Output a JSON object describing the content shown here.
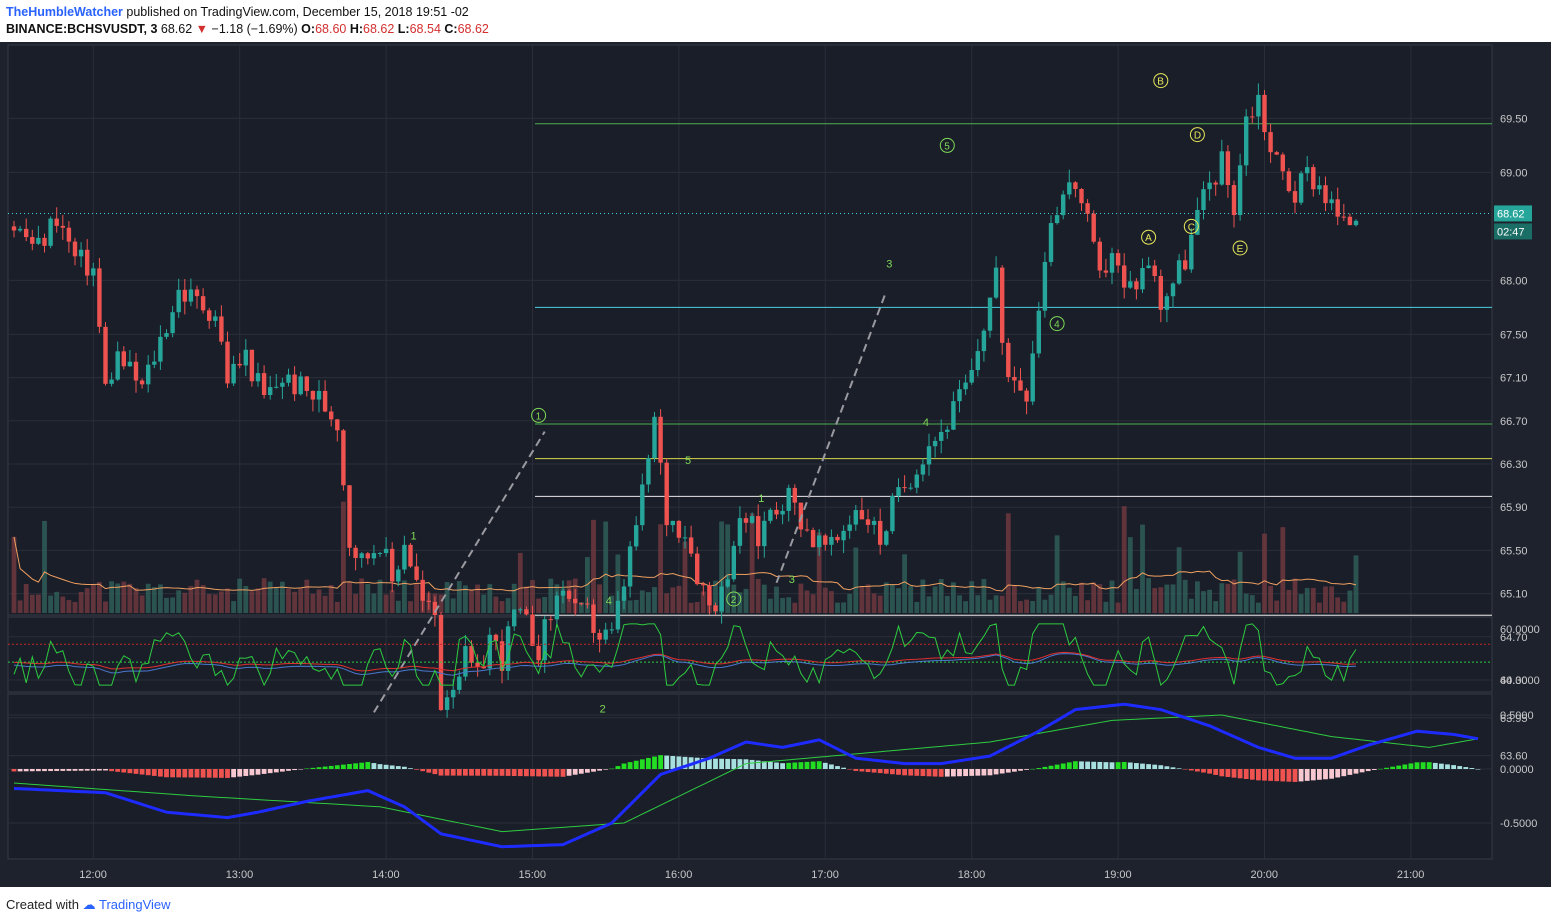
{
  "header": {
    "author": "TheHumbleWatcher",
    "published": "published on TradingView.com, December 15, 2018 19:51 -02",
    "symbol": "BINANCE:BCHSVUSDT, 3",
    "last": "68.62",
    "change": "−1.18 (−1.69%)",
    "o_label": "O:",
    "o_value": "68.60",
    "h_label": "H:",
    "h_value": "68.62",
    "l_label": "L:",
    "l_value": "68.54",
    "c_label": "C:",
    "c_value": "68.62"
  },
  "footer": {
    "created": "Created with",
    "brand": "TradingView"
  },
  "colors": {
    "bg": "#1e222d",
    "up": "#26a69a",
    "down": "#ef5350",
    "grid": "#2a2e39",
    "macd_line": "#1e2bff",
    "signal": "#2ecc40",
    "yellow": "#e8e85a",
    "cyan": "#4dd0e1"
  },
  "chart_data": [
    {
      "type": "candlestick",
      "title": "BINANCE:BCHSVUSDT, 3",
      "x_ticks": [
        "12:00",
        "13:00",
        "14:00",
        "15:00",
        "16:00",
        "17:00",
        "18:00",
        "19:00",
        "20:00",
        "21:00"
      ],
      "y_ticks": [
        "69.50",
        "69.00",
        "68.00",
        "67.50",
        "67.10",
        "66.70",
        "66.30",
        "65.90",
        "65.50",
        "65.10",
        "64.70",
        "64.30",
        "63.95",
        "63.60"
      ],
      "last_price_label": "68.62",
      "countdown_label": "02:47",
      "ohlc_path": [
        [
          0,
          68.5
        ],
        [
          4,
          68.3
        ],
        [
          7,
          68.6
        ],
        [
          10,
          68.2
        ],
        [
          13,
          68.1
        ],
        [
          15,
          67.0
        ],
        [
          17,
          67.3
        ],
        [
          21,
          67.0
        ],
        [
          25,
          67.6
        ],
        [
          27,
          67.9
        ],
        [
          30,
          67.8
        ],
        [
          33,
          67.7
        ],
        [
          35,
          67.1
        ],
        [
          38,
          67.3
        ],
        [
          41,
          66.9
        ],
        [
          44,
          67.1
        ],
        [
          47,
          67.0
        ],
        [
          50,
          66.9
        ],
        [
          53,
          66.7
        ],
        [
          55,
          65.6
        ],
        [
          57,
          65.4
        ],
        [
          60,
          65.6
        ],
        [
          62,
          65.2
        ],
        [
          64,
          65.6
        ],
        [
          67,
          65.0
        ],
        [
          69,
          64.9
        ],
        [
          70,
          64.1
        ],
        [
          72,
          64.3
        ],
        [
          74,
          64.5
        ],
        [
          76,
          64.3
        ],
        [
          78,
          64.7
        ],
        [
          80,
          64.5
        ],
        [
          82,
          64.9
        ],
        [
          84,
          64.8
        ],
        [
          86,
          64.6
        ],
        [
          88,
          64.9
        ],
        [
          90,
          65.2
        ],
        [
          92,
          64.9
        ],
        [
          94,
          64.9
        ],
        [
          96,
          64.7
        ],
        [
          98,
          64.7
        ],
        [
          100,
          65.2
        ],
        [
          103,
          66.0
        ],
        [
          105,
          66.7
        ],
        [
          107,
          65.8
        ],
        [
          110,
          65.7
        ],
        [
          112,
          65.3
        ],
        [
          114,
          65.0
        ],
        [
          116,
          65.1
        ],
        [
          118,
          65.6
        ],
        [
          120,
          65.8
        ],
        [
          122,
          65.6
        ],
        [
          124,
          65.9
        ],
        [
          127,
          66.0
        ],
        [
          129,
          65.8
        ],
        [
          131,
          65.6
        ],
        [
          134,
          65.5
        ],
        [
          136,
          65.7
        ],
        [
          138,
          65.9
        ],
        [
          140,
          65.8
        ],
        [
          142,
          65.6
        ],
        [
          144,
          65.9
        ],
        [
          146,
          66.1
        ],
        [
          148,
          66.3
        ],
        [
          150,
          66.5
        ],
        [
          152,
          66.6
        ],
        [
          154,
          66.8
        ],
        [
          157,
          67.1
        ],
        [
          159,
          67.6
        ],
        [
          161,
          68.1
        ],
        [
          162,
          67.3
        ],
        [
          164,
          67.1
        ],
        [
          166,
          67.0
        ],
        [
          168,
          67.8
        ],
        [
          170,
          68.6
        ],
        [
          172,
          68.8
        ],
        [
          174,
          68.9
        ],
        [
          176,
          68.5
        ],
        [
          178,
          68.0
        ],
        [
          180,
          68.3
        ],
        [
          182,
          67.9
        ],
        [
          184,
          68.0
        ],
        [
          186,
          68.2
        ],
        [
          188,
          67.8
        ],
        [
          190,
          68.0
        ],
        [
          192,
          68.2
        ],
        [
          194,
          68.6
        ],
        [
          196,
          68.9
        ],
        [
          198,
          69.1
        ],
        [
          200,
          68.7
        ],
        [
          202,
          69.5
        ],
        [
          204,
          69.7
        ],
        [
          206,
          69.2
        ],
        [
          208,
          69.0
        ],
        [
          210,
          68.8
        ],
        [
          212,
          69.0
        ],
        [
          214,
          68.9
        ],
        [
          216,
          68.7
        ],
        [
          218,
          68.5
        ],
        [
          220,
          68.62
        ]
      ]
    },
    {
      "type": "line",
      "title": "RSI",
      "y_ticks": [
        "60.0000",
        "40.0000"
      ],
      "series": [
        {
          "color": "#2ecc40"
        },
        {
          "color": "#e03030"
        },
        {
          "color": "#4a78d0"
        }
      ]
    },
    {
      "type": "bar",
      "title": "MACD",
      "y_ticks": [
        "0.5000",
        "0.0000",
        "-0.5000"
      ],
      "macd_path": [
        [
          0,
          -0.18
        ],
        [
          15,
          -0.22
        ],
        [
          25,
          -0.4
        ],
        [
          35,
          -0.45
        ],
        [
          40,
          -0.4
        ],
        [
          48,
          -0.3
        ],
        [
          58,
          -0.2
        ],
        [
          64,
          -0.35
        ],
        [
          70,
          -0.6
        ],
        [
          80,
          -0.72
        ],
        [
          90,
          -0.7
        ],
        [
          98,
          -0.5
        ],
        [
          106,
          -0.05
        ],
        [
          114,
          0.1
        ],
        [
          120,
          0.25
        ],
        [
          126,
          0.2
        ],
        [
          132,
          0.27
        ],
        [
          138,
          0.1
        ],
        [
          146,
          0.05
        ],
        [
          152,
          0.05
        ],
        [
          160,
          0.12
        ],
        [
          168,
          0.35
        ],
        [
          174,
          0.55
        ],
        [
          182,
          0.6
        ],
        [
          188,
          0.55
        ],
        [
          196,
          0.4
        ],
        [
          204,
          0.2
        ],
        [
          210,
          0.1
        ],
        [
          216,
          0.1
        ],
        [
          222,
          0.22
        ],
        [
          230,
          0.35
        ],
        [
          236,
          0.32
        ],
        [
          240,
          0.28
        ]
      ],
      "signal_path": [
        [
          0,
          -0.13
        ],
        [
          30,
          -0.25
        ],
        [
          60,
          -0.35
        ],
        [
          80,
          -0.58
        ],
        [
          100,
          -0.5
        ],
        [
          120,
          0.05
        ],
        [
          140,
          0.15
        ],
        [
          160,
          0.25
        ],
        [
          180,
          0.45
        ],
        [
          198,
          0.5
        ],
        [
          216,
          0.3
        ],
        [
          232,
          0.2
        ],
        [
          240,
          0.28
        ]
      ]
    }
  ],
  "annotations": {
    "waves": [
      "1",
      "2",
      "3",
      "4",
      "5"
    ],
    "abcde": [
      "A",
      "B",
      "C",
      "D",
      "E"
    ]
  }
}
